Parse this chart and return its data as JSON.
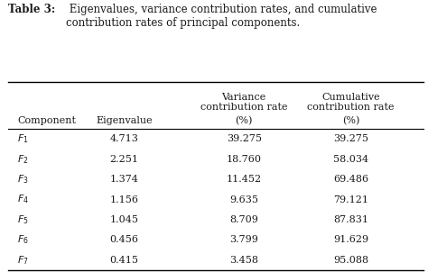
{
  "title_smallcaps": "Table 3:",
  "title_normal": " Eigenvalues, variance contribution rates, and cumulative\ncontribution rates of principal components.",
  "components": [
    "$F_1$",
    "$F_2$",
    "$F_3$",
    "$F_4$",
    "$F_5$",
    "$F_6$",
    "$F_7$"
  ],
  "eigenvalues": [
    "4.713",
    "2.251",
    "1.374",
    "1.156",
    "1.045",
    "0.456",
    "0.415"
  ],
  "variance_rates": [
    "39.275",
    "18.760",
    "11.452",
    "9.635",
    "8.709",
    "3.799",
    "3.458"
  ],
  "cumulative_rates": [
    "39.275",
    "58.034",
    "69.486",
    "79.121",
    "87.831",
    "91.629",
    "95.088"
  ],
  "bg_color": "#ffffff",
  "text_color": "#1a1a1a",
  "font_size": 8.0,
  "title_font_size": 8.5
}
